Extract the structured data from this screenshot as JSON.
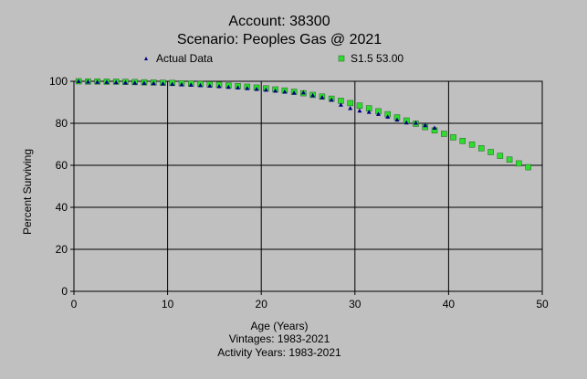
{
  "chart_data": {
    "type": "scatter",
    "title": "Account: 38300",
    "subtitle": "Scenario: Peoples Gas @ 2021",
    "xlabel": "Age (Years)",
    "ylabel": "Percent Surviving",
    "footnotes": [
      "Vintages: 1983-2021",
      "Activity Years: 1983-2021"
    ],
    "xlim": [
      0,
      50
    ],
    "ylim": [
      0,
      100
    ],
    "x_ticks": [
      0,
      10,
      20,
      30,
      40,
      50
    ],
    "y_ticks": [
      0,
      20,
      40,
      60,
      80,
      100
    ],
    "grid": true,
    "legend_placement": "top",
    "series": [
      {
        "name": "Actual Data",
        "marker": "triangle",
        "color": "#000080",
        "points": [
          [
            0.5,
            100
          ],
          [
            1.5,
            99.8
          ],
          [
            2.5,
            99.7
          ],
          [
            3.5,
            99.6
          ],
          [
            4.5,
            99.5
          ],
          [
            5.5,
            99.4
          ],
          [
            6.5,
            99.3
          ],
          [
            7.5,
            99.2
          ],
          [
            8.5,
            99.1
          ],
          [
            9.5,
            98.9
          ],
          [
            10.5,
            98.7
          ],
          [
            11.5,
            98.5
          ],
          [
            12.5,
            98.3
          ],
          [
            13.5,
            98.1
          ],
          [
            14.5,
            97.9
          ],
          [
            15.5,
            97.6
          ],
          [
            16.5,
            97.3
          ],
          [
            17.5,
            97.0
          ],
          [
            18.5,
            96.7
          ],
          [
            19.5,
            96.3
          ],
          [
            20.5,
            95.9
          ],
          [
            21.5,
            95.5
          ],
          [
            22.5,
            95.0
          ],
          [
            23.5,
            94.5
          ],
          [
            24.5,
            94.6
          ],
          [
            25.5,
            93.3
          ],
          [
            26.5,
            92.4
          ],
          [
            27.5,
            91.2
          ],
          [
            28.5,
            88.8
          ],
          [
            29.5,
            87.2
          ],
          [
            30.5,
            86.0
          ],
          [
            31.5,
            85.4
          ],
          [
            32.5,
            84.4
          ],
          [
            33.5,
            83.1
          ],
          [
            34.5,
            81.7
          ],
          [
            35.5,
            80.3
          ],
          [
            36.5,
            80.2
          ],
          [
            37.5,
            79.0
          ],
          [
            38.5,
            77.8
          ]
        ]
      },
      {
        "name": "S1.5 53.00",
        "marker": "square",
        "color": "#2edc2e",
        "points": [
          [
            0.5,
            100
          ],
          [
            1.5,
            99.9
          ],
          [
            2.5,
            99.9
          ],
          [
            3.5,
            99.8
          ],
          [
            4.5,
            99.8
          ],
          [
            5.5,
            99.7
          ],
          [
            6.5,
            99.6
          ],
          [
            7.5,
            99.5
          ],
          [
            8.5,
            99.4
          ],
          [
            9.5,
            99.3
          ],
          [
            10.5,
            99.2
          ],
          [
            11.5,
            99.0
          ],
          [
            12.5,
            98.9
          ],
          [
            13.5,
            98.7
          ],
          [
            14.5,
            98.5
          ],
          [
            15.5,
            98.3
          ],
          [
            16.5,
            98.0
          ],
          [
            17.5,
            97.7
          ],
          [
            18.5,
            97.4
          ],
          [
            19.5,
            97.0
          ],
          [
            20.5,
            96.6
          ],
          [
            21.5,
            96.1
          ],
          [
            22.5,
            95.6
          ],
          [
            23.5,
            95.0
          ],
          [
            24.5,
            94.3
          ],
          [
            25.5,
            93.5
          ],
          [
            26.5,
            92.7
          ],
          [
            27.5,
            91.7
          ],
          [
            28.5,
            90.7
          ],
          [
            29.5,
            89.6
          ],
          [
            30.5,
            88.4
          ],
          [
            31.5,
            87.1
          ],
          [
            32.5,
            85.7
          ],
          [
            33.5,
            84.3
          ],
          [
            34.5,
            82.8
          ],
          [
            35.5,
            81.3
          ],
          [
            36.5,
            79.8
          ],
          [
            37.5,
            78.2
          ],
          [
            38.5,
            76.6
          ],
          [
            39.5,
            75.0
          ],
          [
            40.5,
            73.3
          ],
          [
            41.5,
            71.6
          ],
          [
            42.5,
            69.9
          ],
          [
            43.5,
            68.1
          ],
          [
            44.5,
            66.3
          ],
          [
            45.5,
            64.5
          ],
          [
            46.5,
            62.7
          ],
          [
            47.5,
            60.9
          ],
          [
            48.5,
            59.1
          ]
        ]
      }
    ]
  }
}
